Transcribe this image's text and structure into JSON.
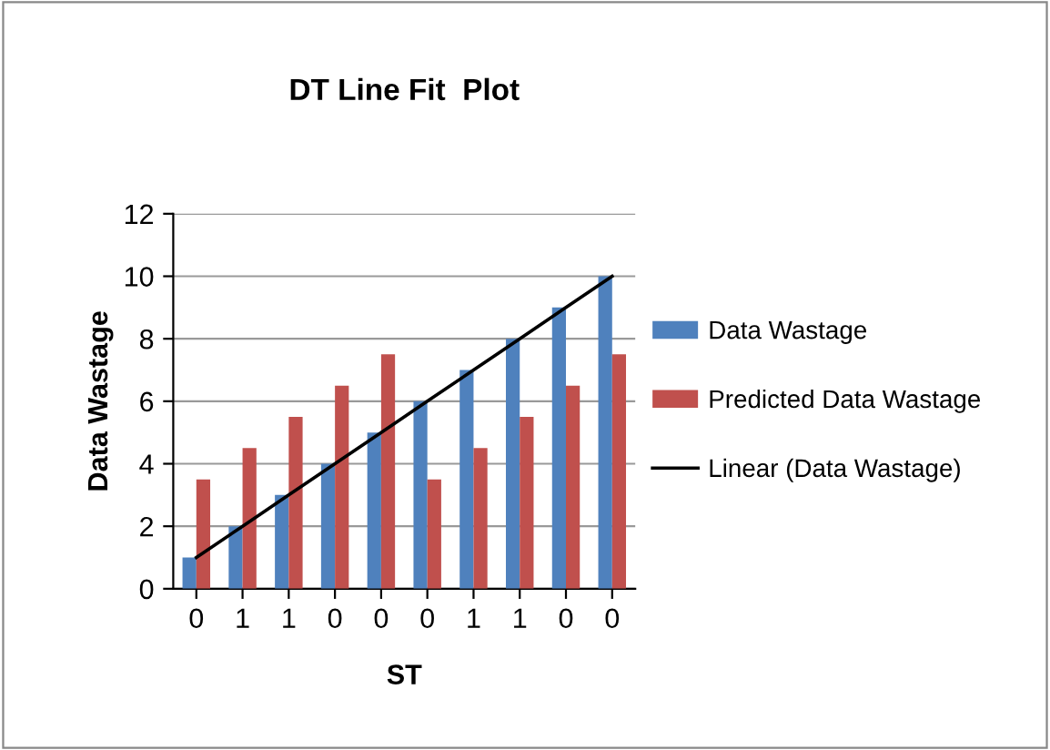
{
  "chart_data": {
    "type": "bar",
    "title": "DT Line Fit  Plot",
    "xlabel": "ST",
    "ylabel": "Data Wastage",
    "categories": [
      "0",
      "1",
      "1",
      "0",
      "0",
      "0",
      "1",
      "1",
      "0",
      "0"
    ],
    "series": [
      {
        "name": "Data Wastage",
        "color": "#4f81bd",
        "values": [
          1,
          2,
          3,
          4,
          5,
          6,
          7,
          8,
          9,
          10
        ]
      },
      {
        "name": "Predicted Data Wastage",
        "color": "#c0504d",
        "values": [
          3.5,
          4.5,
          5.5,
          6.5,
          7.5,
          3.5,
          4.5,
          5.5,
          6.5,
          7.5
        ]
      },
      {
        "name": "Linear (Data Wastage)",
        "type": "line",
        "color": "#000000",
        "values": [
          1,
          2,
          3,
          4,
          5,
          6,
          7,
          8,
          9,
          10
        ]
      }
    ],
    "ylim": [
      0,
      12
    ],
    "yticks": [
      0,
      2,
      4,
      6,
      8,
      10,
      12
    ],
    "grid": "y",
    "legend": "right",
    "marker": "none"
  }
}
